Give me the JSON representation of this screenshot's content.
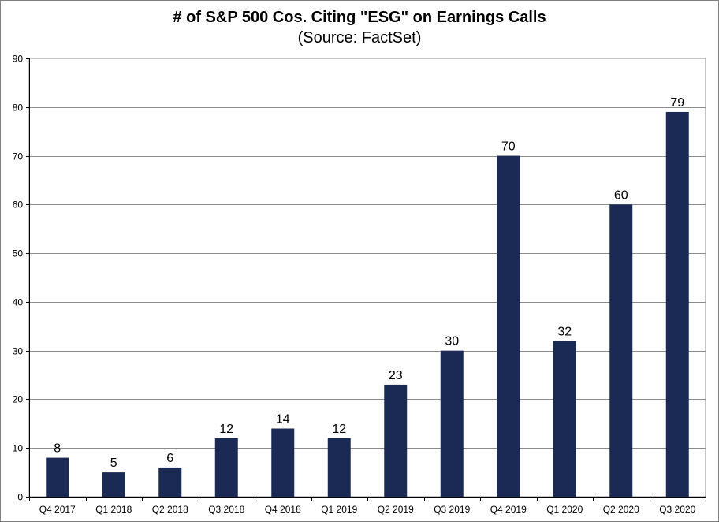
{
  "chart_data": {
    "type": "bar",
    "title": "# of S&P 500 Cos. Citing \"ESG\" on Earnings Calls",
    "subtitle": "(Source: FactSet)",
    "categories": [
      "Q4 2017",
      "Q1 2018",
      "Q2 2018",
      "Q3 2018",
      "Q4 2018",
      "Q1 2019",
      "Q2 2019",
      "Q3 2019",
      "Q4 2019",
      "Q1 2020",
      "Q2 2020",
      "Q3 2020"
    ],
    "values": [
      8,
      5,
      6,
      12,
      14,
      12,
      23,
      30,
      70,
      32,
      60,
      79
    ],
    "ylim": [
      0,
      90
    ],
    "yticks": [
      0,
      10,
      20,
      30,
      40,
      50,
      60,
      70,
      80,
      90
    ],
    "grid": true,
    "legend": "none",
    "bar_color": "#1b2a55",
    "gridline_color": "#8c8c8c"
  }
}
